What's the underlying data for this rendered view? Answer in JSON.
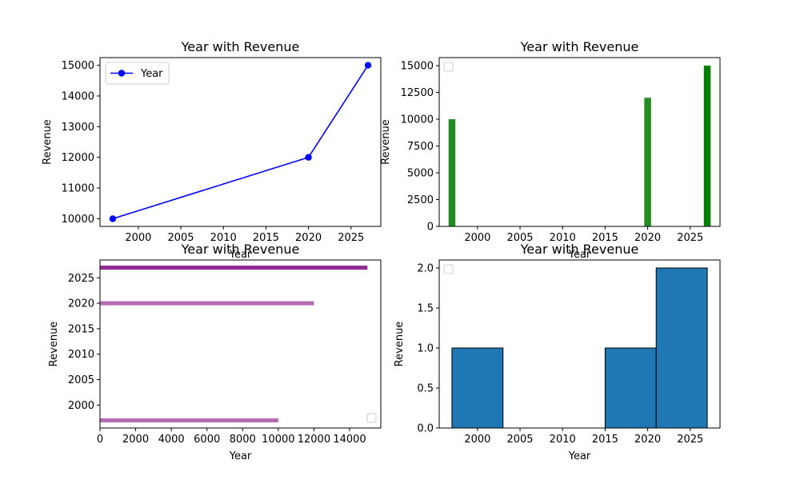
{
  "chart_data": [
    {
      "type": "line",
      "title": "Year with Revenue",
      "xlabel": "Year",
      "ylabel": "Revenue",
      "x": [
        1997,
        2020,
        2027
      ],
      "series": [
        {
          "name": "Year",
          "values": [
            10000,
            12000,
            15000
          ]
        }
      ],
      "xticks": [
        "2000",
        "2005",
        "2010",
        "2015",
        "2020",
        "2025"
      ],
      "yticks": [
        "10000",
        "11000",
        "12000",
        "13000",
        "14000",
        "15000"
      ],
      "xlim": [
        1995.5,
        2028.5
      ],
      "ylim": [
        9750,
        15250
      ],
      "color": "#0000ff",
      "legend": "upper-left"
    },
    {
      "type": "bar",
      "title": "Year with Revenue",
      "xlabel": "Year",
      "ylabel": "Revenue",
      "x": [
        1997,
        2020,
        2027
      ],
      "values": [
        10000,
        12000,
        15000
      ],
      "xticks": [
        "2000",
        "2005",
        "2010",
        "2015",
        "2020",
        "2025"
      ],
      "yticks": [
        "0",
        "2500",
        "5000",
        "7500",
        "10000",
        "12500",
        "15000"
      ],
      "xlim": [
        1995.5,
        2028.5
      ],
      "ylim": [
        0,
        15750
      ],
      "colors": [
        "#228b22",
        "#228b22",
        "#008000"
      ],
      "legend": "upper-left (empty)"
    },
    {
      "type": "bar",
      "orientation": "horizontal",
      "title": "Year with Revenue",
      "xlabel": "Year",
      "ylabel": "Revenue",
      "y": [
        1997,
        2020,
        2027
      ],
      "values": [
        10000,
        12000,
        15000
      ],
      "xticks": [
        "0",
        "2000",
        "4000",
        "6000",
        "8000",
        "10000",
        "12000",
        "14000"
      ],
      "yticks": [
        "2000",
        "2005",
        "2010",
        "2015",
        "2020",
        "2025"
      ],
      "xlim": [
        0,
        15750
      ],
      "ylim": [
        1995.5,
        2028.5
      ],
      "colors": [
        "#b36bb3",
        "#b36bb3",
        "#922b92"
      ],
      "legend": "lower-right (empty)"
    },
    {
      "type": "histogram",
      "title": "Year with Revenue",
      "xlabel": "Year",
      "ylabel": "Revenue",
      "bins": [
        [
          1997,
          2003,
          1
        ],
        [
          2003,
          2009,
          0
        ],
        [
          2009,
          2015,
          0
        ],
        [
          2015,
          2021,
          1
        ],
        [
          2021,
          2027,
          2
        ]
      ],
      "xticks": [
        "2000",
        "2005",
        "2010",
        "2015",
        "2020",
        "2025"
      ],
      "yticks": [
        "0.0",
        "0.5",
        "1.0",
        "1.5",
        "2.0"
      ],
      "xlim": [
        1995.5,
        2028.5
      ],
      "ylim": [
        0,
        2.1
      ],
      "color": "#1f77b4",
      "legend": "upper-left (empty)"
    }
  ]
}
